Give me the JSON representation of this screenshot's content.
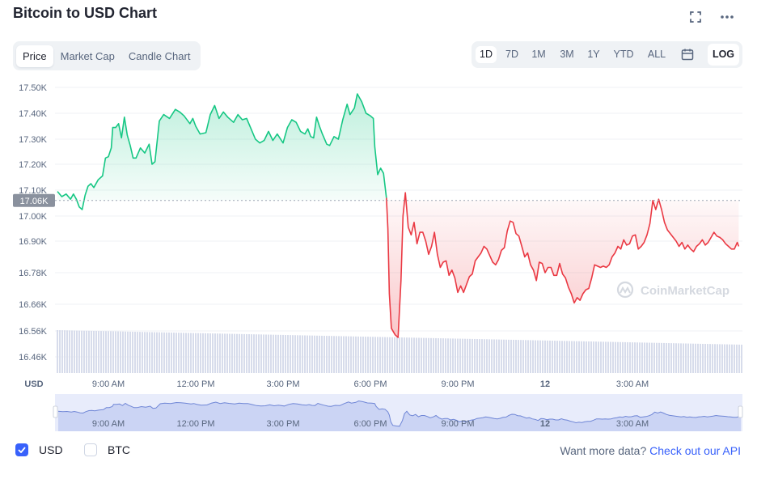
{
  "header": {
    "title": "Bitcoin to USD Chart"
  },
  "tabs": [
    {
      "label": "Price",
      "active": true
    },
    {
      "label": "Market Cap",
      "active": false
    },
    {
      "label": "Candle Chart",
      "active": false
    }
  ],
  "ranges": [
    {
      "label": "1D",
      "active": true
    },
    {
      "label": "7D",
      "active": false
    },
    {
      "label": "1M",
      "active": false
    },
    {
      "label": "3M",
      "active": false
    },
    {
      "label": "1Y",
      "active": false
    },
    {
      "label": "YTD",
      "active": false
    },
    {
      "label": "ALL",
      "active": false
    }
  ],
  "log_label": "LOG",
  "icons": {
    "expand": "expand-icon",
    "more": "more-icon",
    "calendar": "calendar-icon"
  },
  "colors": {
    "up": "#16c784",
    "down": "#ea3943",
    "accent": "#3861fb",
    "volume": "#d0d6e6"
  },
  "chart_data": {
    "type": "line",
    "watermark": "CoinMarketCap",
    "currency_label": "USD",
    "current_price_label": "17.06K",
    "current_price": 17060,
    "y_ticks": [
      "17.50K",
      "17.40K",
      "17.30K",
      "17.20K",
      "17.10K",
      "17.00K",
      "16.90K",
      "16.78K",
      "16.66K",
      "16.56K",
      "16.46K"
    ],
    "x_ticks": [
      "9:00 AM",
      "12:00 PM",
      "3:00 PM",
      "6:00 PM",
      "9:00 PM",
      "12",
      "3:00 AM"
    ],
    "navigator_x_ticks": [
      "9:00 AM",
      "12:00 PM",
      "3:00 PM",
      "6:00 PM",
      "9:00 PM",
      "12",
      "3:00 AM"
    ],
    "x_unit": "hours",
    "series": [
      {
        "points": [
          [
            -1.75,
            17095
          ],
          [
            -1.6,
            17075
          ],
          [
            -1.45,
            17085
          ],
          [
            -1.3,
            17065
          ],
          [
            -1.2,
            17085
          ],
          [
            -1.1,
            17065
          ],
          [
            -1.0,
            17035
          ],
          [
            -0.9,
            17025
          ],
          [
            -0.8,
            17080
          ],
          [
            -0.7,
            17115
          ],
          [
            -0.6,
            17125
          ],
          [
            -0.5,
            17110
          ],
          [
            -0.35,
            17140
          ],
          [
            -0.2,
            17155
          ],
          [
            -0.1,
            17225
          ],
          [
            0.0,
            17230
          ],
          [
            0.1,
            17265
          ],
          [
            0.15,
            17345
          ],
          [
            0.25,
            17345
          ],
          [
            0.35,
            17360
          ],
          [
            0.45,
            17305
          ],
          [
            0.55,
            17385
          ],
          [
            0.65,
            17315
          ],
          [
            0.75,
            17275
          ],
          [
            0.85,
            17225
          ],
          [
            0.95,
            17225
          ],
          [
            1.1,
            17265
          ],
          [
            1.25,
            17245
          ],
          [
            1.4,
            17280
          ],
          [
            1.5,
            17200
          ],
          [
            1.6,
            17210
          ],
          [
            1.75,
            17370
          ],
          [
            1.9,
            17395
          ],
          [
            2.1,
            17380
          ],
          [
            2.3,
            17415
          ],
          [
            2.45,
            17405
          ],
          [
            2.6,
            17390
          ],
          [
            2.8,
            17360
          ],
          [
            2.9,
            17380
          ],
          [
            3.0,
            17350
          ],
          [
            3.15,
            17320
          ],
          [
            3.35,
            17325
          ],
          [
            3.5,
            17395
          ],
          [
            3.65,
            17430
          ],
          [
            3.8,
            17380
          ],
          [
            3.95,
            17405
          ],
          [
            4.1,
            17385
          ],
          [
            4.3,
            17365
          ],
          [
            4.45,
            17395
          ],
          [
            4.6,
            17375
          ],
          [
            4.75,
            17380
          ],
          [
            4.9,
            17340
          ],
          [
            5.05,
            17300
          ],
          [
            5.2,
            17285
          ],
          [
            5.35,
            17295
          ],
          [
            5.5,
            17330
          ],
          [
            5.65,
            17295
          ],
          [
            5.8,
            17320
          ],
          [
            6.0,
            17285
          ],
          [
            6.15,
            17345
          ],
          [
            6.3,
            17375
          ],
          [
            6.45,
            17365
          ],
          [
            6.6,
            17330
          ],
          [
            6.75,
            17320
          ],
          [
            6.85,
            17340
          ],
          [
            6.95,
            17310
          ],
          [
            7.05,
            17305
          ],
          [
            7.15,
            17385
          ],
          [
            7.25,
            17350
          ],
          [
            7.35,
            17320
          ],
          [
            7.5,
            17280
          ],
          [
            7.6,
            17275
          ],
          [
            7.75,
            17310
          ],
          [
            7.9,
            17300
          ],
          [
            8.05,
            17375
          ],
          [
            8.2,
            17435
          ],
          [
            8.3,
            17395
          ],
          [
            8.45,
            17420
          ],
          [
            8.55,
            17475
          ],
          [
            8.7,
            17445
          ],
          [
            8.85,
            17400
          ],
          [
            9.0,
            17390
          ],
          [
            9.1,
            17380
          ],
          [
            9.15,
            17270
          ],
          [
            9.25,
            17160
          ],
          [
            9.35,
            17185
          ],
          [
            9.45,
            17165
          ],
          [
            9.55,
            17070
          ]
        ]
      },
      {
        "points": [
          [
            9.55,
            17070
          ],
          [
            9.6,
            16950
          ],
          [
            9.65,
            16700
          ],
          [
            9.72,
            16570
          ],
          [
            9.85,
            16545
          ],
          [
            9.95,
            16535
          ],
          [
            10.05,
            16750
          ],
          [
            10.12,
            17000
          ],
          [
            10.2,
            17090
          ],
          [
            10.3,
            16955
          ],
          [
            10.4,
            16925
          ],
          [
            10.5,
            16975
          ],
          [
            10.6,
            16890
          ],
          [
            10.7,
            16935
          ],
          [
            10.8,
            16935
          ],
          [
            10.9,
            16900
          ],
          [
            11.0,
            16850
          ],
          [
            11.1,
            16880
          ],
          [
            11.2,
            16935
          ],
          [
            11.3,
            16850
          ],
          [
            11.4,
            16800
          ],
          [
            11.5,
            16820
          ],
          [
            11.6,
            16825
          ],
          [
            11.7,
            16770
          ],
          [
            11.8,
            16790
          ],
          [
            11.9,
            16760
          ],
          [
            12.0,
            16705
          ],
          [
            12.1,
            16730
          ],
          [
            12.2,
            16705
          ],
          [
            12.3,
            16735
          ],
          [
            12.4,
            16765
          ],
          [
            12.5,
            16775
          ],
          [
            12.6,
            16825
          ],
          [
            12.7,
            16840
          ],
          [
            12.8,
            16855
          ],
          [
            12.9,
            16880
          ],
          [
            13.0,
            16870
          ],
          [
            13.1,
            16845
          ],
          [
            13.2,
            16820
          ],
          [
            13.3,
            16810
          ],
          [
            13.4,
            16830
          ],
          [
            13.5,
            16865
          ],
          [
            13.6,
            16875
          ],
          [
            13.7,
            16940
          ],
          [
            13.8,
            16980
          ],
          [
            13.9,
            16975
          ],
          [
            14.0,
            16930
          ],
          [
            14.1,
            16920
          ],
          [
            14.2,
            16880
          ],
          [
            14.3,
            16840
          ],
          [
            14.4,
            16855
          ],
          [
            14.5,
            16810
          ],
          [
            14.6,
            16790
          ],
          [
            14.7,
            16750
          ],
          [
            14.8,
            16820
          ],
          [
            14.9,
            16815
          ],
          [
            15.0,
            16780
          ],
          [
            15.1,
            16800
          ],
          [
            15.2,
            16800
          ],
          [
            15.3,
            16770
          ],
          [
            15.4,
            16770
          ],
          [
            15.5,
            16815
          ],
          [
            15.6,
            16775
          ],
          [
            15.7,
            16760
          ],
          [
            15.8,
            16725
          ],
          [
            15.9,
            16700
          ],
          [
            16.0,
            16665
          ],
          [
            16.1,
            16685
          ],
          [
            16.2,
            16675
          ],
          [
            16.3,
            16700
          ],
          [
            16.4,
            16715
          ],
          [
            16.5,
            16720
          ],
          [
            16.6,
            16760
          ],
          [
            16.7,
            16810
          ],
          [
            16.8,
            16805
          ],
          [
            16.9,
            16800
          ],
          [
            17.0,
            16805
          ],
          [
            17.1,
            16800
          ],
          [
            17.2,
            16810
          ],
          [
            17.3,
            16840
          ],
          [
            17.4,
            16855
          ],
          [
            17.5,
            16880
          ],
          [
            17.6,
            16870
          ],
          [
            17.7,
            16905
          ],
          [
            17.8,
            16885
          ],
          [
            17.9,
            16890
          ],
          [
            18.0,
            16920
          ],
          [
            18.1,
            16925
          ],
          [
            18.2,
            16870
          ],
          [
            18.3,
            16880
          ],
          [
            18.4,
            16895
          ],
          [
            18.5,
            16925
          ],
          [
            18.6,
            16970
          ],
          [
            18.7,
            17060
          ],
          [
            18.8,
            17025
          ],
          [
            18.9,
            17065
          ],
          [
            19.0,
            17025
          ],
          [
            19.1,
            16975
          ],
          [
            19.2,
            16945
          ],
          [
            19.3,
            16930
          ],
          [
            19.4,
            16915
          ],
          [
            19.5,
            16900
          ],
          [
            19.6,
            16880
          ],
          [
            19.7,
            16895
          ],
          [
            19.8,
            16870
          ],
          [
            19.9,
            16885
          ],
          [
            20.0,
            16870
          ],
          [
            20.1,
            16860
          ],
          [
            20.2,
            16880
          ],
          [
            20.3,
            16890
          ],
          [
            20.4,
            16905
          ],
          [
            20.5,
            16885
          ],
          [
            20.6,
            16895
          ],
          [
            20.7,
            16915
          ],
          [
            20.8,
            16935
          ],
          [
            20.9,
            16920
          ],
          [
            21.0,
            16915
          ],
          [
            21.1,
            16905
          ],
          [
            21.2,
            16890
          ],
          [
            21.3,
            16880
          ],
          [
            21.4,
            16870
          ],
          [
            21.5,
            16870
          ],
          [
            21.6,
            16895
          ],
          [
            21.65,
            16880
          ]
        ]
      }
    ],
    "volume_note": "relative volume bars under price line"
  },
  "footer": {
    "usd_label": "USD",
    "btc_label": "BTC",
    "more_data_text": "Want more data?",
    "api_link_text": "Check out our API"
  }
}
